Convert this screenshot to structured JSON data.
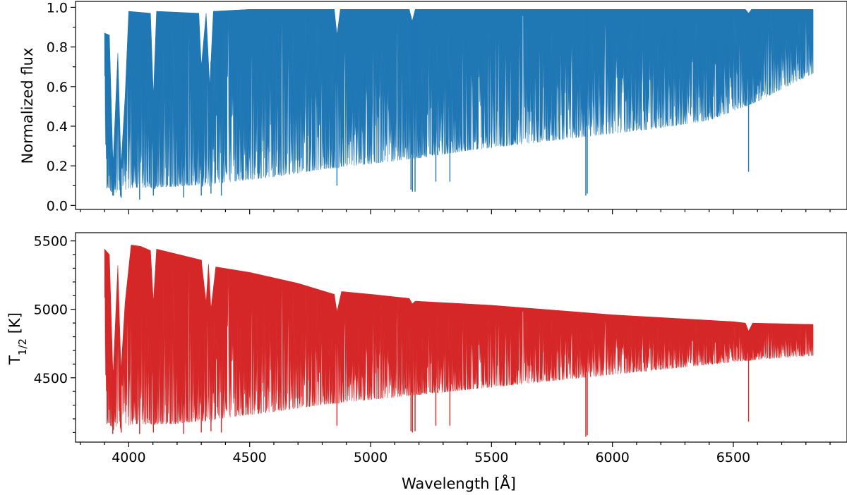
{
  "chart_data": [
    {
      "type": "line",
      "panel": "top",
      "ylabel": "Normalized flux",
      "xlabel": "",
      "xlim": [
        3780,
        6970
      ],
      "ylim": [
        -0.02,
        1.03
      ],
      "yticks": [
        {
          "value": 0.0,
          "label": "0.0"
        },
        {
          "value": 0.2,
          "label": "0.2"
        },
        {
          "value": 0.4,
          "label": "0.4"
        },
        {
          "value": 0.6,
          "label": "0.6"
        },
        {
          "value": 0.8,
          "label": "0.8"
        },
        {
          "value": 1.0,
          "label": "1.0"
        }
      ],
      "color": "#1f77b4",
      "series": [
        {
          "upper_envelope": [
            [
              3900,
              0.87
            ],
            [
              3920,
              0.86
            ],
            [
              3935,
              0.2
            ],
            [
              3955,
              0.77
            ],
            [
              3968,
              0.2
            ],
            [
              3985,
              0.55
            ],
            [
              4000,
              0.98
            ],
            [
              4090,
              0.97
            ],
            [
              4102,
              0.55
            ],
            [
              4115,
              0.98
            ],
            [
              4290,
              0.97
            ],
            [
              4300,
              0.7
            ],
            [
              4320,
              0.97
            ],
            [
              4335,
              0.6
            ],
            [
              4350,
              0.98
            ],
            [
              4500,
              0.99
            ],
            [
              4850,
              0.99
            ],
            [
              4861,
              0.86
            ],
            [
              4875,
              0.99
            ],
            [
              5160,
              0.99
            ],
            [
              5172,
              0.93
            ],
            [
              5185,
              0.99
            ],
            [
              6550,
              0.99
            ],
            [
              6563,
              0.97
            ],
            [
              6575,
              0.99
            ],
            [
              6830,
              0.99
            ]
          ],
          "lower_envelope": [
            [
              3900,
              0.05
            ],
            [
              3970,
              0.03
            ],
            [
              4000,
              0.04
            ],
            [
              4200,
              0.05
            ],
            [
              4400,
              0.07
            ],
            [
              4600,
              0.1
            ],
            [
              4800,
              0.14
            ],
            [
              5000,
              0.17
            ],
            [
              5200,
              0.2
            ],
            [
              5400,
              0.24
            ],
            [
              5600,
              0.27
            ],
            [
              5800,
              0.3
            ],
            [
              6000,
              0.33
            ],
            [
              6200,
              0.36
            ],
            [
              6400,
              0.4
            ],
            [
              6600,
              0.5
            ],
            [
              6830,
              0.65
            ]
          ],
          "deep_lines": [
            [
              3934,
              0.05
            ],
            [
              3969,
              0.04
            ],
            [
              4045,
              0.03
            ],
            [
              4102,
              0.05
            ],
            [
              4227,
              0.04
            ],
            [
              4300,
              0.05
            ],
            [
              4340,
              0.06
            ],
            [
              4383,
              0.05
            ],
            [
              4861,
              0.1
            ],
            [
              5167,
              0.08
            ],
            [
              5173,
              0.07
            ],
            [
              5184,
              0.07
            ],
            [
              5270,
              0.12
            ],
            [
              5328,
              0.12
            ],
            [
              5890,
              0.05
            ],
            [
              5896,
              0.06
            ],
            [
              6563,
              0.17
            ]
          ]
        }
      ]
    },
    {
      "type": "line",
      "panel": "bottom",
      "ylabel": "T1/2 [K]",
      "xlabel": "Wavelength [Å]",
      "xlim": [
        3780,
        6970
      ],
      "ylim": [
        4030,
        5560
      ],
      "xticks": [
        {
          "value": 4000,
          "label": "4000"
        },
        {
          "value": 4500,
          "label": "4500"
        },
        {
          "value": 5000,
          "label": "5000"
        },
        {
          "value": 5500,
          "label": "5500"
        },
        {
          "value": 6000,
          "label": "6000"
        },
        {
          "value": 6500,
          "label": "6500"
        }
      ],
      "yticks": [
        {
          "value": 4500,
          "label": "4500"
        },
        {
          "value": 5000,
          "label": "5000"
        },
        {
          "value": 5500,
          "label": "5500"
        }
      ],
      "color": "#d62728",
      "series": [
        {
          "upper_envelope": [
            [
              3900,
              5440
            ],
            [
              3920,
              5400
            ],
            [
              3935,
              4500
            ],
            [
              3955,
              5320
            ],
            [
              3968,
              4550
            ],
            [
              3985,
              5050
            ],
            [
              4010,
              5470
            ],
            [
              4050,
              5460
            ],
            [
              4090,
              5430
            ],
            [
              4102,
              5050
            ],
            [
              4115,
              5440
            ],
            [
              4300,
              5360
            ],
            [
              4320,
              5050
            ],
            [
              4330,
              5330
            ],
            [
              4340,
              5000
            ],
            [
              4360,
              5310
            ],
            [
              4500,
              5270
            ],
            [
              4700,
              5190
            ],
            [
              4850,
              5110
            ],
            [
              4861,
              4980
            ],
            [
              4880,
              5130
            ],
            [
              5000,
              5110
            ],
            [
              5160,
              5080
            ],
            [
              5172,
              5040
            ],
            [
              5185,
              5060
            ],
            [
              5500,
              5030
            ],
            [
              6000,
              4960
            ],
            [
              6500,
              4910
            ],
            [
              6550,
              4900
            ],
            [
              6563,
              4840
            ],
            [
              6580,
              4900
            ],
            [
              6830,
              4890
            ]
          ],
          "lower_envelope": [
            [
              3900,
              4100
            ],
            [
              4000,
              4090
            ],
            [
              4200,
              4100
            ],
            [
              4400,
              4150
            ],
            [
              4600,
              4200
            ],
            [
              4800,
              4260
            ],
            [
              5000,
              4300
            ],
            [
              5200,
              4340
            ],
            [
              5400,
              4380
            ],
            [
              5600,
              4420
            ],
            [
              5800,
              4460
            ],
            [
              6000,
              4500
            ],
            [
              6200,
              4540
            ],
            [
              6400,
              4580
            ],
            [
              6600,
              4620
            ],
            [
              6830,
              4650
            ]
          ],
          "deep_lines": [
            [
              3934,
              4090
            ],
            [
              3969,
              4100
            ],
            [
              4045,
              4090
            ],
            [
              4102,
              4100
            ],
            [
              4227,
              4090
            ],
            [
              4300,
              4100
            ],
            [
              4340,
              4110
            ],
            [
              4383,
              4100
            ],
            [
              4861,
              4150
            ],
            [
              5167,
              4110
            ],
            [
              5173,
              4100
            ],
            [
              5184,
              4110
            ],
            [
              5270,
              4150
            ],
            [
              5328,
              4150
            ],
            [
              5890,
              4070
            ],
            [
              5896,
              4080
            ],
            [
              6563,
              4180
            ]
          ]
        }
      ]
    }
  ]
}
